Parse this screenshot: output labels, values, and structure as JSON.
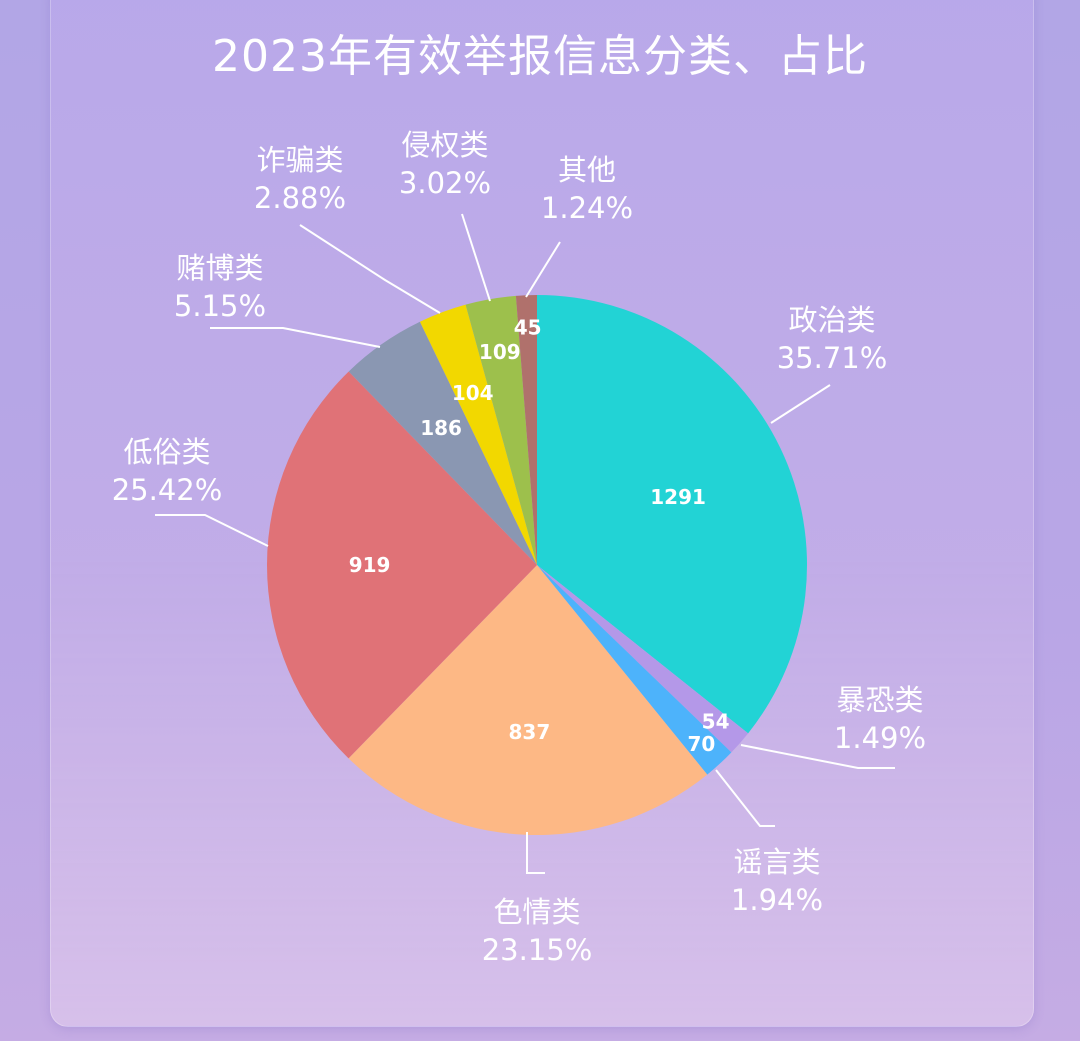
{
  "title": "2023年有效举报信息分类、占比",
  "chart_data": {
    "type": "pie",
    "title": "2023年有效举报信息分类、占比",
    "slices": [
      {
        "name": "政治类",
        "value": 1291,
        "percent": "35.71%",
        "color": "#22d3d5"
      },
      {
        "name": "暴恐类",
        "value": 54,
        "percent": "1.49%",
        "color": "#b498e8"
      },
      {
        "name": "谣言类",
        "value": 70,
        "percent": "1.94%",
        "color": "#4db3fb"
      },
      {
        "name": "色情类",
        "value": 837,
        "percent": "23.15%",
        "color": "#fdb885"
      },
      {
        "name": "低俗类",
        "value": 919,
        "percent": "25.42%",
        "color": "#e07277"
      },
      {
        "name": "赌博类",
        "value": 186,
        "percent": "5.15%",
        "color": "#8a97b2"
      },
      {
        "name": "诈骗类",
        "value": 104,
        "percent": "2.88%",
        "color": "#f2d800"
      },
      {
        "name": "侵权类",
        "value": 109,
        "percent": "3.02%",
        "color": "#9dc04c"
      },
      {
        "name": "其他",
        "value": 45,
        "percent": "1.24%",
        "color": "#b0716c"
      }
    ]
  }
}
